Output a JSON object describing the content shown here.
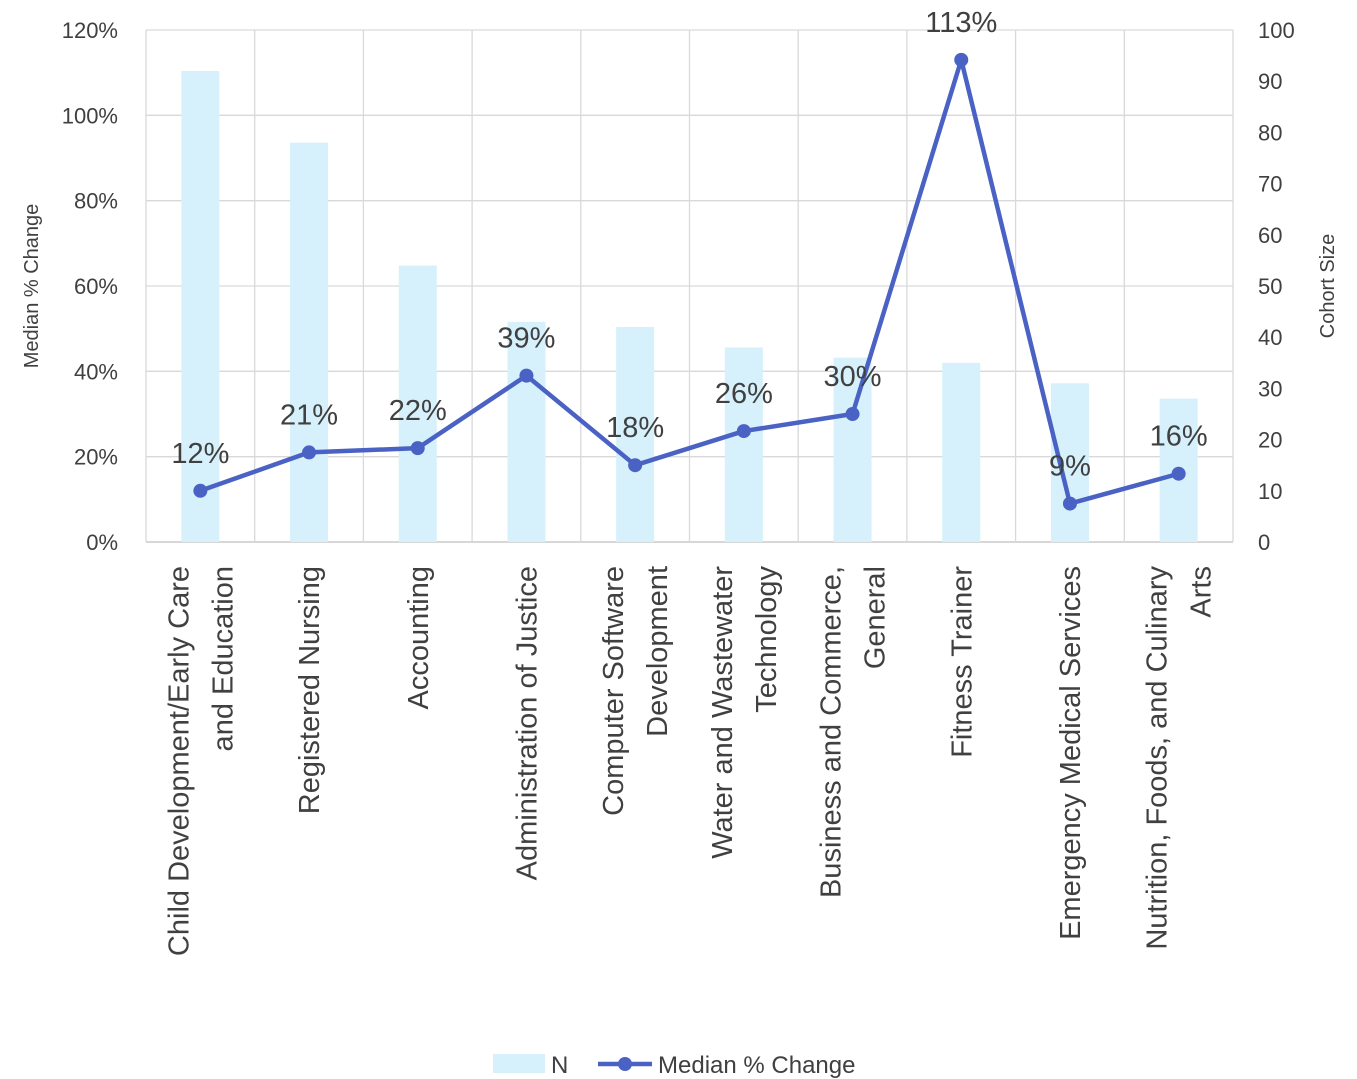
{
  "chart_data": {
    "type": "bar+line",
    "categories": [
      [
        "Child Development/Early Care",
        "and Education"
      ],
      [
        "Registered Nursing"
      ],
      [
        "Accounting"
      ],
      [
        "Administration of Justice"
      ],
      [
        "Computer Software",
        "Development"
      ],
      [
        "Water and Wastewater",
        "Technology"
      ],
      [
        "Business and Commerce,",
        "General"
      ],
      [
        "Fitness Trainer"
      ],
      [
        "Emergency Medical Services"
      ],
      [
        "Nutrition, Foods, and Culinary",
        "Arts"
      ]
    ],
    "series": [
      {
        "name": "N",
        "type": "bar",
        "axis": "right",
        "color": "#d6f1fb",
        "values": [
          92,
          78,
          54,
          43,
          42,
          38,
          36,
          35,
          31,
          28
        ]
      },
      {
        "name": "Median % Change",
        "type": "line",
        "axis": "left",
        "color": "#4a62c4",
        "values": [
          12,
          21,
          22,
          39,
          18,
          26,
          30,
          113,
          9,
          16
        ],
        "data_labels": [
          "12%",
          "21%",
          "22%",
          "39%",
          "18%",
          "26%",
          "30%",
          "113%",
          "9%",
          "16%"
        ]
      }
    ],
    "y_left": {
      "label": "Median % Change",
      "range": [
        0,
        120
      ],
      "ticks": [
        0,
        20,
        40,
        60,
        80,
        100,
        120
      ],
      "tick_labels": [
        "0%",
        "20%",
        "40%",
        "60%",
        "80%",
        "100%",
        "120%"
      ]
    },
    "y_right": {
      "label": "Cohort Size",
      "range": [
        0,
        100
      ],
      "ticks": [
        0,
        10,
        20,
        30,
        40,
        50,
        60,
        70,
        80,
        90,
        100
      ],
      "tick_labels": [
        "0",
        "10",
        "20",
        "30",
        "40",
        "50",
        "60",
        "70",
        "80",
        "90",
        "100"
      ]
    },
    "grid": true,
    "legend": {
      "position": "bottom",
      "entries": [
        "N",
        "Median % Change"
      ]
    }
  }
}
